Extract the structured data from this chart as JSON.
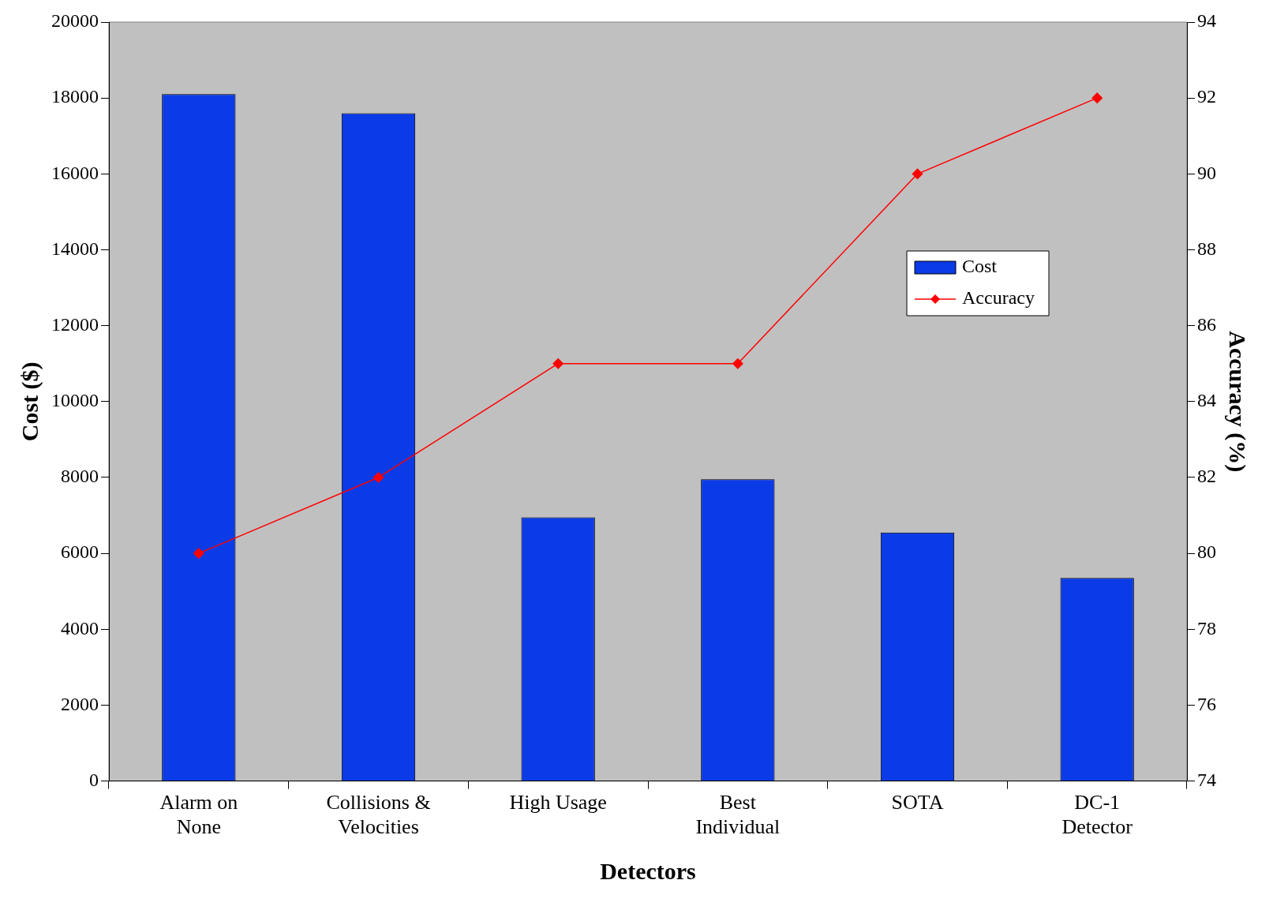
{
  "chart_data": {
    "type": "bar",
    "xlabel": "Detectors",
    "ylabel": "Cost ($)",
    "y2label": "Accuracy (%)",
    "categories": [
      "Alarm on None",
      "Collisions & Velocities",
      "High Usage",
      "Best Individual",
      "SOTA",
      "DC-1 Detector"
    ],
    "series": [
      {
        "name": "Cost",
        "color": "#0a3be6",
        "values": [
          18100,
          17600,
          6950,
          7950,
          6550,
          5350
        ]
      },
      {
        "name": "Accuracy",
        "type": "line",
        "axis": "y2",
        "color": "#ff0000",
        "marker": "diamond",
        "values": [
          80,
          82,
          85,
          85,
          90,
          92
        ]
      }
    ],
    "ylim": [
      0,
      20000
    ],
    "yticks": [
      0,
      2000,
      4000,
      6000,
      8000,
      10000,
      12000,
      14000,
      16000,
      18000,
      20000
    ],
    "y2lim": [
      74,
      94
    ],
    "y2ticks": [
      74,
      76,
      78,
      80,
      82,
      84,
      86,
      88,
      90,
      92,
      94
    ],
    "grid": false,
    "legend": "top right"
  }
}
